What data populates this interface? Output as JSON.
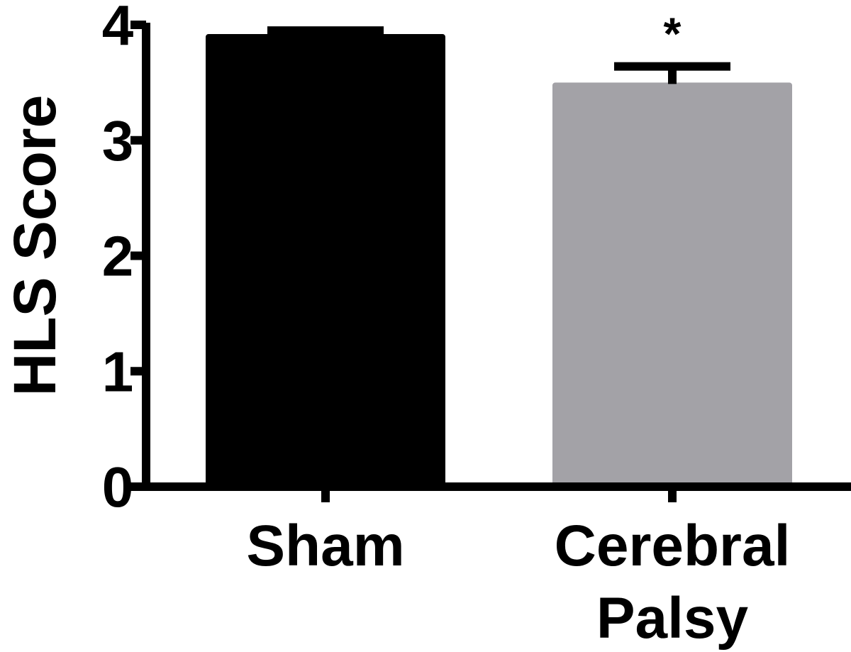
{
  "chart_data": {
    "type": "bar",
    "categories": [
      "Sham",
      "Cerebral Palsy"
    ],
    "category_lines": [
      [
        "Sham"
      ],
      [
        "Cerebral",
        "Palsy"
      ]
    ],
    "values": [
      3.92,
      3.5
    ],
    "error_upper": [
      0.03,
      0.14
    ],
    "significance": [
      "",
      "*"
    ],
    "colors": [
      "#000000",
      "#a3a2a7"
    ],
    "ylabel": "HLS Score",
    "xlabel": "",
    "ylim": [
      0,
      4
    ],
    "yticks": [
      0,
      1,
      2,
      3,
      4
    ],
    "grid": false
  }
}
